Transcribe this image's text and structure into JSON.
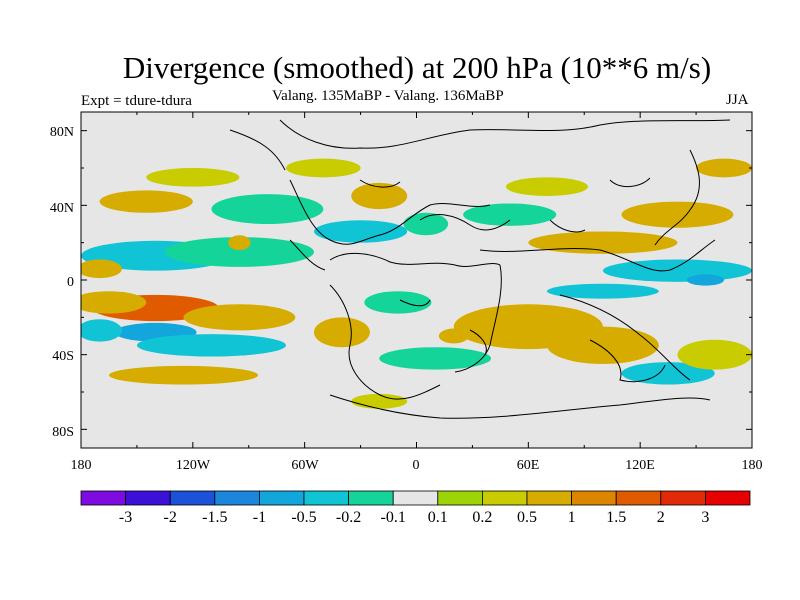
{
  "title": "Divergence (smoothed) at 200 hPa (10**6 m/s)",
  "subtitle": "Valang.  135MaBP - Valang.  136MaBP",
  "experiment": "Expt = tdure-tdura",
  "season": "JJA",
  "y_axis_labels": [
    "80N",
    "40N",
    "0",
    "40S",
    "80S"
  ],
  "x_axis_labels": [
    "180",
    "120W",
    "60W",
    "0",
    "60E",
    "120E",
    "180"
  ],
  "colorbar": {
    "labels": [
      "-3",
      "-2",
      "-1.5",
      "-1",
      "-0.5",
      "-0.2",
      "-0.1",
      "0.1",
      "0.2",
      "0.5",
      "1",
      "1.5",
      "2",
      "3"
    ],
    "colors": [
      "#7e0ce0",
      "#3d10d8",
      "#1c52d8",
      "#1c86dc",
      "#12a6dc",
      "#10c4d6",
      "#14d49a",
      "#e6e6e6",
      "#9cd408",
      "#c8cc00",
      "#d6ac00",
      "#dc8600",
      "#e05a00",
      "#e02a08",
      "#e60000"
    ]
  },
  "map": {
    "background_color": "#e6e6e6",
    "blobs": [
      {
        "lon": -140,
        "lat": -15,
        "value": 1.6,
        "rx": 34,
        "ry": 7
      },
      {
        "lon": -165,
        "lat": -12,
        "value": 0.8,
        "rx": 20,
        "ry": 6
      },
      {
        "lon": -95,
        "lat": -20,
        "value": 0.5,
        "rx": 30,
        "ry": 7
      },
      {
        "lon": -140,
        "lat": -28,
        "value": -0.8,
        "rx": 22,
        "ry": 5
      },
      {
        "lon": -170,
        "lat": -27,
        "value": -0.5,
        "rx": 12,
        "ry": 6
      },
      {
        "lon": -110,
        "lat": -35,
        "value": -0.5,
        "rx": 40,
        "ry": 6
      },
      {
        "lon": -125,
        "lat": -51,
        "value": 0.5,
        "rx": 40,
        "ry": 5
      },
      {
        "lon": -140,
        "lat": 13,
        "value": -0.5,
        "rx": 40,
        "ry": 8
      },
      {
        "lon": -95,
        "lat": 15,
        "value": -0.2,
        "rx": 40,
        "ry": 8
      },
      {
        "lon": -170,
        "lat": 6,
        "value": 0.5,
        "rx": 12,
        "ry": 5
      },
      {
        "lon": -95,
        "lat": 20,
        "value": 0.5,
        "rx": 6,
        "ry": 4
      },
      {
        "lon": -145,
        "lat": 42,
        "value": 0.5,
        "rx": 25,
        "ry": 6
      },
      {
        "lon": -120,
        "lat": 55,
        "value": 0.2,
        "rx": 25,
        "ry": 5
      },
      {
        "lon": -50,
        "lat": 60,
        "value": 0.2,
        "rx": 20,
        "ry": 5
      },
      {
        "lon": -80,
        "lat": 38,
        "value": -0.2,
        "rx": 30,
        "ry": 8
      },
      {
        "lon": -30,
        "lat": 26,
        "value": -0.5,
        "rx": 25,
        "ry": 6
      },
      {
        "lon": -20,
        "lat": 45,
        "value": 0.5,
        "rx": 15,
        "ry": 7
      },
      {
        "lon": 5,
        "lat": 30,
        "value": -0.2,
        "rx": 12,
        "ry": 6
      },
      {
        "lon": 50,
        "lat": 35,
        "value": -0.2,
        "rx": 25,
        "ry": 6
      },
      {
        "lon": 70,
        "lat": 50,
        "value": 0.2,
        "rx": 22,
        "ry": 5
      },
      {
        "lon": 140,
        "lat": 35,
        "value": 0.5,
        "rx": 30,
        "ry": 7
      },
      {
        "lon": 165,
        "lat": 60,
        "value": 0.5,
        "rx": 15,
        "ry": 5
      },
      {
        "lon": 100,
        "lat": 20,
        "value": 0.5,
        "rx": 40,
        "ry": 6
      },
      {
        "lon": 140,
        "lat": 5,
        "value": -0.5,
        "rx": 40,
        "ry": 6
      },
      {
        "lon": 155,
        "lat": 0,
        "value": -1.0,
        "rx": 10,
        "ry": 3
      },
      {
        "lon": 100,
        "lat": -6,
        "value": -0.5,
        "rx": 30,
        "ry": 4
      },
      {
        "lon": 60,
        "lat": -25,
        "value": 0.8,
        "rx": 40,
        "ry": 12
      },
      {
        "lon": 100,
        "lat": -35,
        "value": 0.5,
        "rx": 30,
        "ry": 10
      },
      {
        "lon": 135,
        "lat": -50,
        "value": -0.5,
        "rx": 25,
        "ry": 6
      },
      {
        "lon": -40,
        "lat": -28,
        "value": 0.5,
        "rx": 15,
        "ry": 8
      },
      {
        "lon": -10,
        "lat": -12,
        "value": -0.2,
        "rx": 18,
        "ry": 6
      },
      {
        "lon": 10,
        "lat": -42,
        "value": -0.2,
        "rx": 30,
        "ry": 6
      },
      {
        "lon": -20,
        "lat": -65,
        "value": 0.2,
        "rx": 15,
        "ry": 4
      },
      {
        "lon": 160,
        "lat": -40,
        "value": 0.2,
        "rx": 20,
        "ry": 8
      },
      {
        "lon": 20,
        "lat": -30,
        "value": 0.5,
        "rx": 8,
        "ry": 4
      }
    ]
  }
}
